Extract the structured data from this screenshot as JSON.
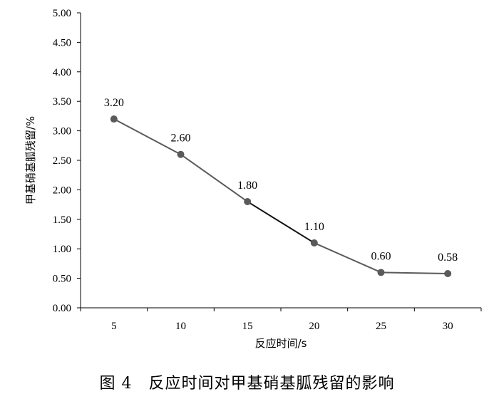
{
  "chart_data": {
    "type": "line",
    "x": [
      5,
      10,
      15,
      20,
      25,
      30
    ],
    "categories": [
      "5",
      "10",
      "15",
      "20",
      "25",
      "30"
    ],
    "values": [
      3.2,
      2.6,
      1.8,
      1.1,
      0.6,
      0.58
    ],
    "data_labels": [
      "3.20",
      "2.60",
      "1.80",
      "1.10",
      "0.60",
      "0.58"
    ],
    "xlabel": "反应时间/s",
    "ylabel": "甲基硝基胍残留/%",
    "ylim": [
      0,
      5
    ],
    "yticks": [
      "0.00",
      "0.50",
      "1.00",
      "1.50",
      "2.00",
      "2.50",
      "3.00",
      "3.50",
      "4.00",
      "4.50",
      "5.00"
    ],
    "grid": false,
    "line_color": "#5a5a5a",
    "marker_color": "#5a5a5a"
  },
  "caption": "图 4　反应时间对甲基硝基胍残留的影响"
}
